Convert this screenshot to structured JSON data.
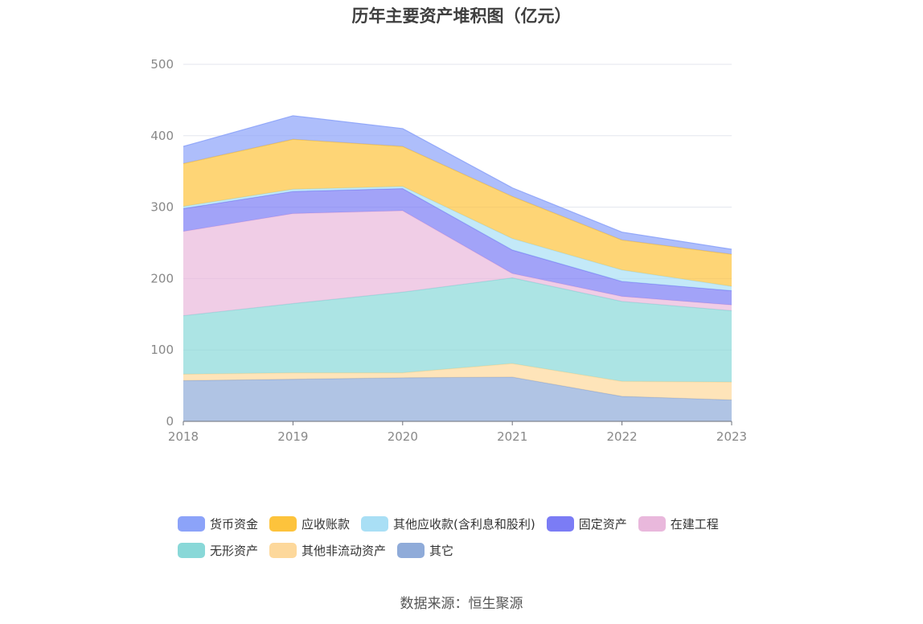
{
  "chart_data": {
    "type": "area",
    "stacked": true,
    "title": "历年主要资产堆积图（亿元）",
    "x": [
      "2018",
      "2019",
      "2020",
      "2021",
      "2022",
      "2023"
    ],
    "ylim": [
      0,
      500
    ],
    "yticks": [
      0,
      100,
      200,
      300,
      400,
      500
    ],
    "grid": true,
    "legend_position": "bottom",
    "series": [
      {
        "name": "其它",
        "color": "#8fabd9",
        "values": [
          57,
          59,
          61,
          62,
          35,
          30
        ]
      },
      {
        "name": "其他非流动资产",
        "color": "#fdd89b",
        "values": [
          9,
          9,
          7,
          19,
          21,
          25
        ]
      },
      {
        "name": "无形资产",
        "color": "#89d8d8",
        "values": [
          82,
          97,
          113,
          120,
          112,
          100
        ]
      },
      {
        "name": "在建工程",
        "color": "#e9b8dc",
        "values": [
          118,
          126,
          114,
          6,
          7,
          8
        ]
      },
      {
        "name": "固定资产",
        "color": "#7b7cf5",
        "values": [
          32,
          31,
          31,
          33,
          21,
          20
        ]
      },
      {
        "name": "其他应收款(含利息和股利)",
        "color": "#a9dff5",
        "values": [
          3,
          3,
          3,
          16,
          16,
          6
        ]
      },
      {
        "name": "应收账款",
        "color": "#fdc33c",
        "values": [
          60,
          70,
          56,
          59,
          42,
          45
        ]
      },
      {
        "name": "货币资金",
        "color": "#8ca3f9",
        "values": [
          24,
          33,
          25,
          12,
          11,
          7
        ]
      }
    ]
  },
  "legend_rows": [
    [
      {
        "label": "货币资金",
        "color": "#8ca3f9"
      },
      {
        "label": "应收账款",
        "color": "#fdc33c"
      },
      {
        "label": "其他应收款(含利息和股利)",
        "color": "#a9dff5"
      },
      {
        "label": "固定资产",
        "color": "#7b7cf5"
      },
      {
        "label": "在建工程",
        "color": "#e9b8dc"
      }
    ],
    [
      {
        "label": "无形资产",
        "color": "#89d8d8"
      },
      {
        "label": "其他非流动资产",
        "color": "#fdd89b"
      },
      {
        "label": "其它",
        "color": "#8fabd9"
      }
    ]
  ],
  "source": "数据来源：恒生聚源"
}
